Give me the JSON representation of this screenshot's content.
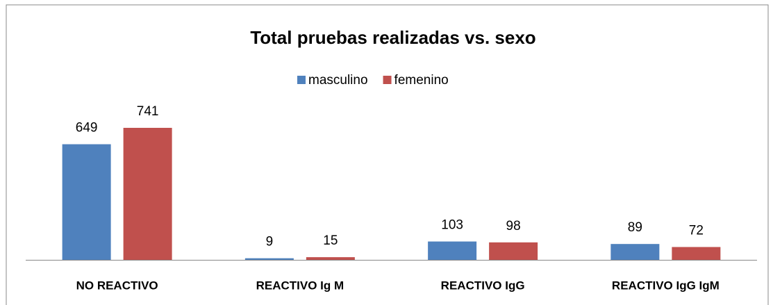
{
  "chart_data": {
    "type": "bar",
    "title": "Total pruebas realizadas vs. sexo",
    "categories": [
      "NO REACTIVO",
      "REACTIVO Ig M",
      "REACTIVO IgG",
      "REACTIVO IgG IgM"
    ],
    "series": [
      {
        "name": "masculino",
        "color": "#4f81bd",
        "values": [
          649,
          9,
          103,
          89
        ]
      },
      {
        "name": "femenino",
        "color": "#c0504d",
        "values": [
          741,
          15,
          98,
          72
        ]
      }
    ],
    "legend": "top"
  }
}
